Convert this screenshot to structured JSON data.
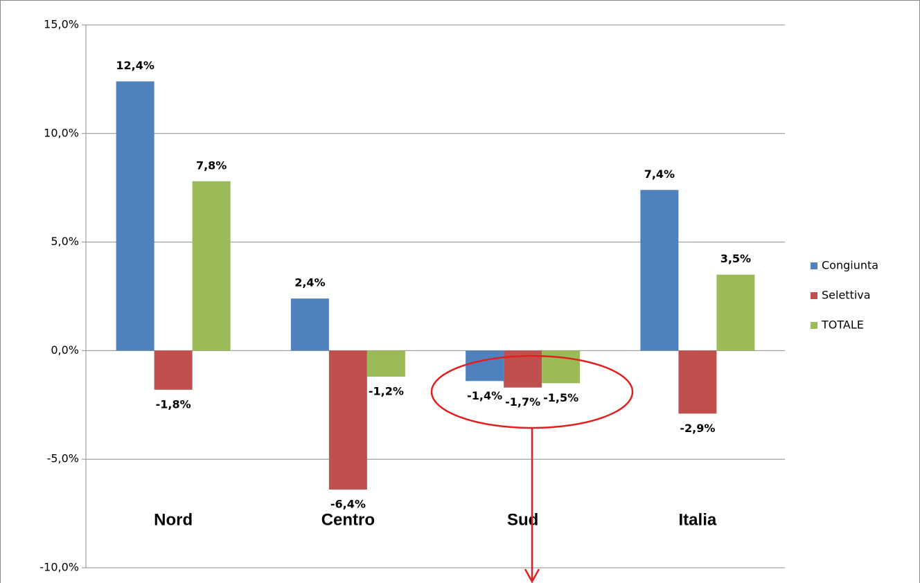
{
  "chart_data": {
    "type": "bar",
    "categories": [
      "Nord",
      "Centro",
      "Sud",
      "Italia"
    ],
    "series": [
      {
        "name": "Congiunta",
        "color": "#4f81bd",
        "values": [
          12.4,
          2.4,
          -1.4,
          7.4
        ],
        "value_labels": [
          "12,4%",
          "2,4%",
          "-1,4%",
          "7,4%"
        ]
      },
      {
        "name": "Selettiva",
        "color": "#c0504d",
        "values": [
          -1.8,
          -6.4,
          -1.7,
          -2.9
        ],
        "value_labels": [
          "-1,8%",
          "-6,4%",
          "-1,7%",
          "-2,9%"
        ]
      },
      {
        "name": "TOTALE",
        "color": "#9bbb59",
        "values": [
          7.8,
          -1.2,
          -1.5,
          3.5
        ],
        "value_labels": [
          "7,8%",
          "-1,2%",
          "-1,5%",
          "3,5%"
        ]
      }
    ],
    "ylim": [
      -10,
      15
    ],
    "yticks": [
      {
        "value": -10,
        "label": "-10,0%"
      },
      {
        "value": -5,
        "label": "-5,0%"
      },
      {
        "value": 0,
        "label": "0,0%"
      },
      {
        "value": 5,
        "label": "5,0%"
      },
      {
        "value": 10,
        "label": "10,0%"
      },
      {
        "value": 15,
        "label": "15,0%"
      }
    ],
    "grid": true,
    "legend": "right"
  }
}
